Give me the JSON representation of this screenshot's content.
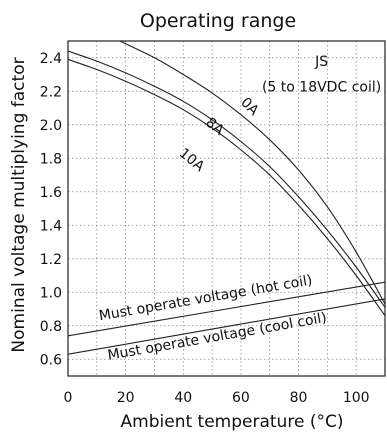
{
  "chart_data": {
    "type": "line",
    "title": "Operating range",
    "xlabel": "Ambient temperature (°C)",
    "ylabel": "Nominal voltage multiplying factor",
    "xlim": [
      0,
      110
    ],
    "ylim": [
      0.5,
      2.5
    ],
    "xticks": [
      0,
      20,
      40,
      60,
      80,
      100
    ],
    "yticks": [
      0.6,
      0.8,
      1.0,
      1.2,
      1.4,
      1.6,
      1.8,
      2.0,
      2.2,
      2.4
    ],
    "ytick_labels": [
      "0.6",
      "0.8",
      "1.0",
      "1.2",
      "1.4",
      "1.6",
      "1.8",
      "2.0",
      "2.2",
      "2.4"
    ],
    "grid": true,
    "series": [
      {
        "name": "0A",
        "x": [
          18,
          30,
          40,
          50,
          60,
          70,
          80,
          90,
          100,
          110
        ],
        "y": [
          2.5,
          2.4,
          2.3,
          2.19,
          2.06,
          1.91,
          1.73,
          1.51,
          1.24,
          0.93
        ]
      },
      {
        "name": "8A",
        "x": [
          0,
          10,
          20,
          30,
          40,
          50,
          60,
          70,
          80,
          90,
          100,
          110
        ],
        "y": [
          2.44,
          2.38,
          2.31,
          2.23,
          2.14,
          2.03,
          1.9,
          1.75,
          1.57,
          1.37,
          1.15,
          0.91
        ]
      },
      {
        "name": "10A",
        "x": [
          0,
          10,
          20,
          30,
          40,
          50,
          60,
          70,
          80,
          90,
          100,
          110
        ],
        "y": [
          2.39,
          2.33,
          2.26,
          2.18,
          2.09,
          1.98,
          1.85,
          1.7,
          1.52,
          1.32,
          1.1,
          0.86
        ]
      },
      {
        "name": "Must operate voltage (hot coil)",
        "x": [
          0,
          110
        ],
        "y": [
          0.74,
          1.06
        ]
      },
      {
        "name": "Must operate voltage (cool coil)",
        "x": [
          0,
          110
        ],
        "y": [
          0.63,
          0.96
        ]
      }
    ],
    "annotations": [
      {
        "text": "JS",
        "x": 88,
        "y": 2.35
      },
      {
        "text": "(5 to 18VDC coil)",
        "x": 88,
        "y": 2.2
      },
      {
        "text": "0A",
        "x": 62,
        "y": 2.09
      },
      {
        "text": "8A",
        "x": 50,
        "y": 1.97
      },
      {
        "text": "10A",
        "x": 42,
        "y": 1.77
      },
      {
        "text": "Must operate voltage (hot coil)",
        "x": 48,
        "y": 0.94
      },
      {
        "text": "Must operate voltage (cool coil)",
        "x": 52,
        "y": 0.71
      }
    ]
  }
}
